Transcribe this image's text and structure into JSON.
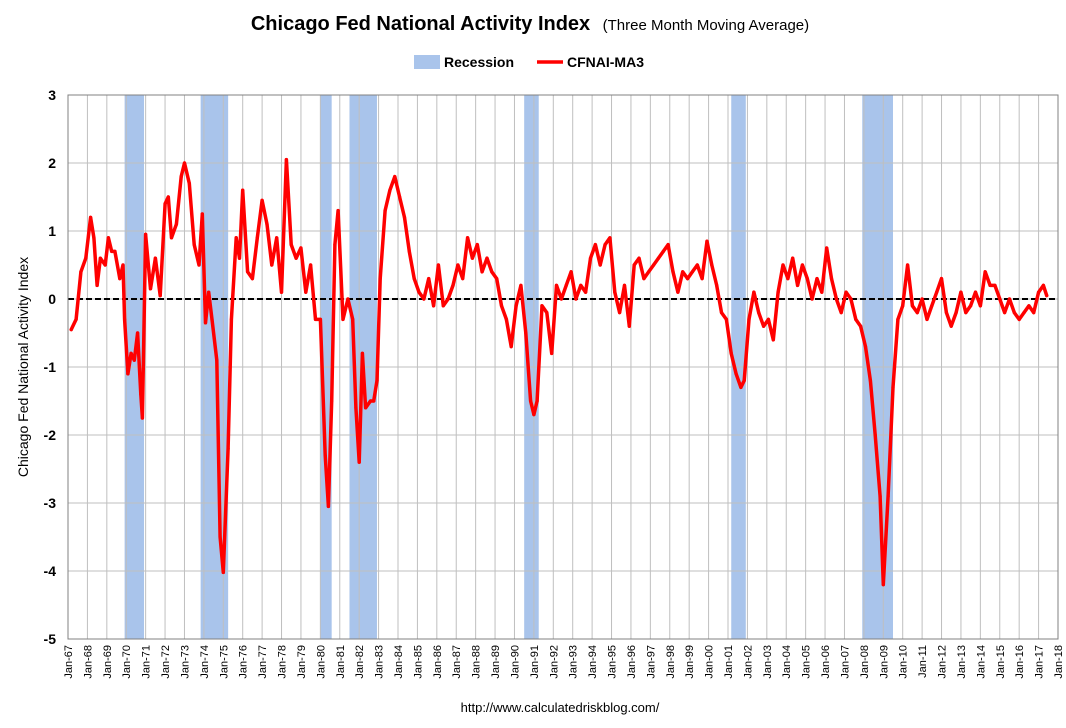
{
  "chart_data": {
    "type": "line",
    "title": "Chicago Fed National Activity Index",
    "subtitle": "(Three Month Moving Average)",
    "ylabel": "Chicago Fed National Activity Index",
    "xlabel": "",
    "ylim": [
      -5,
      3
    ],
    "yticks": [
      "3",
      "2",
      "1",
      "0",
      "-1",
      "-2",
      "-3",
      "-4",
      "-5"
    ],
    "x_start_year": 1967,
    "x_end_year": 2018,
    "xticks": [
      "Jan-67",
      "Jan-68",
      "Jan-69",
      "Jan-70",
      "Jan-71",
      "Jan-72",
      "Jan-73",
      "Jan-74",
      "Jan-75",
      "Jan-76",
      "Jan-77",
      "Jan-78",
      "Jan-79",
      "Jan-80",
      "Jan-81",
      "Jan-82",
      "Jan-83",
      "Jan-84",
      "Jan-85",
      "Jan-86",
      "Jan-87",
      "Jan-88",
      "Jan-89",
      "Jan-90",
      "Jan-91",
      "Jan-92",
      "Jan-93",
      "Jan-94",
      "Jan-95",
      "Jan-96",
      "Jan-97",
      "Jan-98",
      "Jan-99",
      "Jan-00",
      "Jan-01",
      "Jan-02",
      "Jan-03",
      "Jan-04",
      "Jan-05",
      "Jan-06",
      "Jan-07",
      "Jan-08",
      "Jan-09",
      "Jan-10",
      "Jan-11",
      "Jan-12",
      "Jan-13",
      "Jan-14",
      "Jan-15",
      "Jan-16",
      "Jan-17",
      "Jan-18"
    ],
    "grid": true,
    "legend": {
      "position": "top",
      "entries": [
        "Recession",
        "CFNAI-MA3"
      ]
    },
    "colors": {
      "line": "#ff0000",
      "recession": "#a9c4eb",
      "zero_line": "#000000",
      "grid": "#bfbfbf"
    },
    "recessions": [
      {
        "start": "Dec-69",
        "end": "Nov-70"
      },
      {
        "start": "Nov-73",
        "end": "Mar-75"
      },
      {
        "start": "Jan-80",
        "end": "Jul-80"
      },
      {
        "start": "Jul-81",
        "end": "Nov-82"
      },
      {
        "start": "Jul-90",
        "end": "Mar-91"
      },
      {
        "start": "Mar-01",
        "end": "Nov-01"
      },
      {
        "start": "Dec-07",
        "end": "Jun-09"
      }
    ],
    "series": [
      {
        "name": "CFNAI-MA3",
        "points": [
          [
            "Mar-67",
            -0.45
          ],
          [
            "Jun-67",
            -0.3
          ],
          [
            "Sep-67",
            0.4
          ],
          [
            "Dec-67",
            0.6
          ],
          [
            "Mar-68",
            1.2
          ],
          [
            "May-68",
            0.9
          ],
          [
            "Jul-68",
            0.2
          ],
          [
            "Sep-68",
            0.6
          ],
          [
            "Dec-68",
            0.5
          ],
          [
            "Feb-69",
            0.9
          ],
          [
            "Apr-69",
            0.7
          ],
          [
            "Jun-69",
            0.7
          ],
          [
            "Sep-69",
            0.3
          ],
          [
            "Nov-69",
            0.5
          ],
          [
            "Dec-69",
            -0.3
          ],
          [
            "Feb-70",
            -1.1
          ],
          [
            "Apr-70",
            -0.8
          ],
          [
            "Jun-70",
            -0.9
          ],
          [
            "Aug-70",
            -0.5
          ],
          [
            "Oct-70",
            -1.4
          ],
          [
            "Nov-70",
            -1.75
          ],
          [
            "Jan-71",
            0.95
          ],
          [
            "Apr-71",
            0.15
          ],
          [
            "Jul-71",
            0.6
          ],
          [
            "Oct-71",
            0.05
          ],
          [
            "Jan-72",
            1.4
          ],
          [
            "Mar-72",
            1.5
          ],
          [
            "May-72",
            0.9
          ],
          [
            "Aug-72",
            1.1
          ],
          [
            "Nov-72",
            1.8
          ],
          [
            "Jan-73",
            2.0
          ],
          [
            "Apr-73",
            1.7
          ],
          [
            "Jul-73",
            0.8
          ],
          [
            "Oct-73",
            0.5
          ],
          [
            "Dec-73",
            1.25
          ],
          [
            "Feb-74",
            -0.35
          ],
          [
            "Apr-74",
            0.1
          ],
          [
            "Jun-74",
            -0.3
          ],
          [
            "Sep-74",
            -0.9
          ],
          [
            "Nov-74",
            -3.5
          ],
          [
            "Jan-75",
            -4.02
          ],
          [
            "Apr-75",
            -2.2
          ],
          [
            "Jun-75",
            -0.3
          ],
          [
            "Sep-75",
            0.9
          ],
          [
            "Nov-75",
            0.6
          ],
          [
            "Jan-76",
            1.6
          ],
          [
            "Apr-76",
            0.4
          ],
          [
            "Jul-76",
            0.3
          ],
          [
            "Oct-76",
            0.9
          ],
          [
            "Jan-77",
            1.45
          ],
          [
            "Apr-77",
            1.1
          ],
          [
            "Jul-77",
            0.5
          ],
          [
            "Oct-77",
            0.9
          ],
          [
            "Jan-78",
            0.1
          ],
          [
            "Apr-78",
            2.05
          ],
          [
            "Jul-78",
            0.8
          ],
          [
            "Oct-78",
            0.6
          ],
          [
            "Jan-79",
            0.75
          ],
          [
            "Apr-79",
            0.1
          ],
          [
            "Jul-79",
            0.5
          ],
          [
            "Oct-79",
            -0.3
          ],
          [
            "Jan-80",
            -0.3
          ],
          [
            "Apr-80",
            -2.3
          ],
          [
            "Jun-80",
            -3.05
          ],
          [
            "Aug-80",
            -1.5
          ],
          [
            "Oct-80",
            0.8
          ],
          [
            "Dec-80",
            1.3
          ],
          [
            "Mar-81",
            -0.3
          ],
          [
            "Jun-81",
            0.0
          ],
          [
            "Sep-81",
            -0.3
          ],
          [
            "Nov-81",
            -1.6
          ],
          [
            "Jan-82",
            -2.4
          ],
          [
            "Mar-82",
            -0.8
          ],
          [
            "May-82",
            -1.6
          ],
          [
            "Aug-82",
            -1.5
          ],
          [
            "Oct-82",
            -1.5
          ],
          [
            "Dec-82",
            -1.2
          ],
          [
            "Feb-83",
            0.3
          ],
          [
            "May-83",
            1.3
          ],
          [
            "Aug-83",
            1.6
          ],
          [
            "Nov-83",
            1.8
          ],
          [
            "Feb-84",
            1.5
          ],
          [
            "May-84",
            1.2
          ],
          [
            "Aug-84",
            0.7
          ],
          [
            "Nov-84",
            0.3
          ],
          [
            "Feb-85",
            0.1
          ],
          [
            "May-85",
            0.0
          ],
          [
            "Aug-85",
            0.3
          ],
          [
            "Nov-85",
            -0.1
          ],
          [
            "Feb-86",
            0.5
          ],
          [
            "May-86",
            -0.1
          ],
          [
            "Aug-86",
            0.0
          ],
          [
            "Nov-86",
            0.2
          ],
          [
            "Feb-87",
            0.5
          ],
          [
            "May-87",
            0.3
          ],
          [
            "Aug-87",
            0.9
          ],
          [
            "Nov-87",
            0.6
          ],
          [
            "Feb-88",
            0.8
          ],
          [
            "May-88",
            0.4
          ],
          [
            "Aug-88",
            0.6
          ],
          [
            "Nov-88",
            0.4
          ],
          [
            "Feb-89",
            0.3
          ],
          [
            "May-89",
            -0.1
          ],
          [
            "Aug-89",
            -0.3
          ],
          [
            "Nov-89",
            -0.7
          ],
          [
            "Feb-90",
            -0.1
          ],
          [
            "May-90",
            0.2
          ],
          [
            "Aug-90",
            -0.5
          ],
          [
            "Nov-90",
            -1.5
          ],
          [
            "Jan-91",
            -1.7
          ],
          [
            "Mar-91",
            -1.5
          ],
          [
            "Jun-91",
            -0.1
          ],
          [
            "Sep-91",
            -0.2
          ],
          [
            "Dec-91",
            -0.8
          ],
          [
            "Mar-92",
            0.2
          ],
          [
            "Jun-92",
            0.0
          ],
          [
            "Sep-92",
            0.2
          ],
          [
            "Dec-92",
            0.4
          ],
          [
            "Mar-93",
            0.0
          ],
          [
            "Jun-93",
            0.2
          ],
          [
            "Sep-93",
            0.1
          ],
          [
            "Dec-93",
            0.6
          ],
          [
            "Mar-94",
            0.8
          ],
          [
            "Jun-94",
            0.5
          ],
          [
            "Sep-94",
            0.8
          ],
          [
            "Dec-94",
            0.9
          ],
          [
            "Mar-95",
            0.1
          ],
          [
            "Jun-95",
            -0.2
          ],
          [
            "Sep-95",
            0.2
          ],
          [
            "Dec-95",
            -0.4
          ],
          [
            "Mar-96",
            0.5
          ],
          [
            "Jun-96",
            0.6
          ],
          [
            "Sep-96",
            0.3
          ],
          [
            "Dec-96",
            0.4
          ],
          [
            "Mar-97",
            0.5
          ],
          [
            "Jun-97",
            0.6
          ],
          [
            "Sep-97",
            0.7
          ],
          [
            "Dec-97",
            0.8
          ],
          [
            "Mar-98",
            0.4
          ],
          [
            "Jun-98",
            0.1
          ],
          [
            "Sep-98",
            0.4
          ],
          [
            "Dec-98",
            0.3
          ],
          [
            "Mar-99",
            0.4
          ],
          [
            "Jun-99",
            0.5
          ],
          [
            "Sep-99",
            0.3
          ],
          [
            "Dec-99",
            0.85
          ],
          [
            "Mar-00",
            0.5
          ],
          [
            "Jun-00",
            0.2
          ],
          [
            "Sep-00",
            -0.2
          ],
          [
            "Dec-00",
            -0.3
          ],
          [
            "Mar-01",
            -0.8
          ],
          [
            "Jun-01",
            -1.1
          ],
          [
            "Sep-01",
            -1.3
          ],
          [
            "Nov-01",
            -1.2
          ],
          [
            "Feb-02",
            -0.3
          ],
          [
            "May-02",
            0.1
          ],
          [
            "Aug-02",
            -0.2
          ],
          [
            "Nov-02",
            -0.4
          ],
          [
            "Feb-03",
            -0.3
          ],
          [
            "May-03",
            -0.6
          ],
          [
            "Aug-03",
            0.1
          ],
          [
            "Nov-03",
            0.5
          ],
          [
            "Feb-04",
            0.3
          ],
          [
            "May-04",
            0.6
          ],
          [
            "Aug-04",
            0.2
          ],
          [
            "Nov-04",
            0.5
          ],
          [
            "Feb-05",
            0.3
          ],
          [
            "May-05",
            0.0
          ],
          [
            "Aug-05",
            0.3
          ],
          [
            "Nov-05",
            0.1
          ],
          [
            "Feb-06",
            0.75
          ],
          [
            "May-06",
            0.3
          ],
          [
            "Aug-06",
            0.0
          ],
          [
            "Nov-06",
            -0.2
          ],
          [
            "Feb-07",
            0.1
          ],
          [
            "May-07",
            0.0
          ],
          [
            "Aug-07",
            -0.3
          ],
          [
            "Nov-07",
            -0.4
          ],
          [
            "Feb-08",
            -0.7
          ],
          [
            "May-08",
            -1.2
          ],
          [
            "Aug-08",
            -2.0
          ],
          [
            "Nov-08",
            -2.9
          ],
          [
            "Jan-09",
            -4.2
          ],
          [
            "Apr-09",
            -2.9
          ],
          [
            "Jul-09",
            -1.3
          ],
          [
            "Oct-09",
            -0.3
          ],
          [
            "Jan-10",
            -0.1
          ],
          [
            "Apr-10",
            0.5
          ],
          [
            "Jul-10",
            -0.1
          ],
          [
            "Oct-10",
            -0.2
          ],
          [
            "Jan-11",
            0.0
          ],
          [
            "Apr-11",
            -0.3
          ],
          [
            "Jul-11",
            -0.1
          ],
          [
            "Oct-11",
            0.1
          ],
          [
            "Jan-12",
            0.3
          ],
          [
            "Apr-12",
            -0.2
          ],
          [
            "Jul-12",
            -0.4
          ],
          [
            "Oct-12",
            -0.2
          ],
          [
            "Jan-13",
            0.1
          ],
          [
            "Apr-13",
            -0.2
          ],
          [
            "Jul-13",
            -0.1
          ],
          [
            "Oct-13",
            0.1
          ],
          [
            "Jan-14",
            -0.1
          ],
          [
            "Apr-14",
            0.4
          ],
          [
            "Jul-14",
            0.2
          ],
          [
            "Oct-14",
            0.2
          ],
          [
            "Jan-15",
            0.0
          ],
          [
            "Apr-15",
            -0.2
          ],
          [
            "Jul-15",
            0.0
          ],
          [
            "Oct-15",
            -0.2
          ],
          [
            "Jan-16",
            -0.3
          ],
          [
            "Apr-16",
            -0.2
          ],
          [
            "Jul-16",
            -0.1
          ],
          [
            "Oct-16",
            -0.2
          ],
          [
            "Jan-17",
            0.1
          ],
          [
            "Apr-17",
            0.2
          ],
          [
            "Jun-17",
            0.05
          ]
        ]
      }
    ],
    "source": "http://www.calculatedriskblog.com/"
  }
}
